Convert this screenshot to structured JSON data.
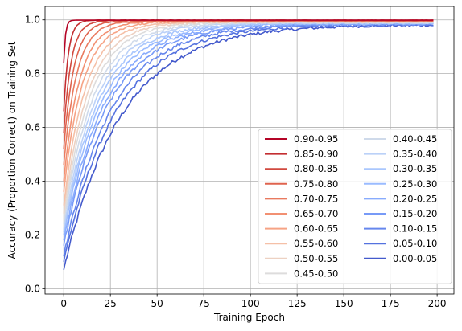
{
  "chart_data": {
    "type": "line",
    "xlabel": "Training Epoch",
    "ylabel": "Accuracy (Proportion Correct) on Training Set",
    "xlim": [
      -10,
      209
    ],
    "ylim": [
      -0.02,
      1.05
    ],
    "xticks": [
      0,
      25,
      50,
      75,
      100,
      125,
      150,
      175,
      200
    ],
    "yticks": [
      0.0,
      0.2,
      0.4,
      0.6,
      0.8,
      1.0
    ],
    "xtick_labels": [
      "0",
      "25",
      "50",
      "75",
      "100",
      "125",
      "150",
      "175",
      "200"
    ],
    "ytick_labels": [
      "0.0",
      "0.2",
      "0.4",
      "0.6",
      "0.8",
      "1.0"
    ],
    "grid": true,
    "legend_position": "lower-right",
    "legend_columns": 2,
    "x_range": [
      0,
      198
    ],
    "series": [
      {
        "name": "0.90-0.95",
        "color": "#b40426",
        "start": 0.84,
        "tau": 0.9,
        "final": 0.999,
        "noise": 0.0
      },
      {
        "name": "0.85-0.90",
        "color": "#c32e31",
        "start": 0.66,
        "tau": 2.5,
        "final": 0.999,
        "noise": 0.001
      },
      {
        "name": "0.80-0.85",
        "color": "#d1493f",
        "start": 0.58,
        "tau": 4.0,
        "final": 0.998,
        "noise": 0.002
      },
      {
        "name": "0.75-0.80",
        "color": "#df634e",
        "start": 0.52,
        "tau": 5.5,
        "final": 0.997,
        "noise": 0.002
      },
      {
        "name": "0.70-0.75",
        "color": "#e97a5f",
        "start": 0.46,
        "tau": 7.0,
        "final": 0.996,
        "noise": 0.003
      },
      {
        "name": "0.65-0.70",
        "color": "#f29072",
        "start": 0.4,
        "tau": 8.5,
        "final": 0.995,
        "noise": 0.003
      },
      {
        "name": "0.60-0.65",
        "color": "#f6a385",
        "start": 0.36,
        "tau": 10.0,
        "final": 0.994,
        "noise": 0.004
      },
      {
        "name": "0.55-0.60",
        "color": "#f5c0a7",
        "start": 0.31,
        "tau": 11.5,
        "final": 0.993,
        "noise": 0.004
      },
      {
        "name": "0.50-0.55",
        "color": "#edd1c2",
        "start": 0.28,
        "tau": 13.0,
        "final": 0.992,
        "noise": 0.005
      },
      {
        "name": "0.45-0.50",
        "color": "#dddcdc",
        "start": 0.26,
        "tau": 14.5,
        "final": 0.991,
        "noise": 0.005
      },
      {
        "name": "0.40-0.45",
        "color": "#cfdaea",
        "start": 0.24,
        "tau": 16.0,
        "final": 0.99,
        "noise": 0.006
      },
      {
        "name": "0.35-0.40",
        "color": "#bbd1f8",
        "start": 0.22,
        "tau": 17.5,
        "final": 0.989,
        "noise": 0.006
      },
      {
        "name": "0.30-0.35",
        "color": "#aac7fd",
        "start": 0.21,
        "tau": 19.0,
        "final": 0.988,
        "noise": 0.007
      },
      {
        "name": "0.25-0.30",
        "color": "#9abbff",
        "start": 0.2,
        "tau": 20.5,
        "final": 0.987,
        "noise": 0.007
      },
      {
        "name": "0.20-0.25",
        "color": "#88abfd",
        "start": 0.18,
        "tau": 22.0,
        "final": 0.986,
        "noise": 0.008
      },
      {
        "name": "0.15-0.20",
        "color": "#779af7",
        "start": 0.16,
        "tau": 23.5,
        "final": 0.985,
        "noise": 0.008
      },
      {
        "name": "0.10-0.15",
        "color": "#6687ed",
        "start": 0.12,
        "tau": 25.5,
        "final": 0.984,
        "noise": 0.009
      },
      {
        "name": "0.05-0.10",
        "color": "#5572df",
        "start": 0.1,
        "tau": 28.0,
        "final": 0.983,
        "noise": 0.009
      },
      {
        "name": "0.00-0.05",
        "color": "#445acc",
        "start": 0.07,
        "tau": 31.0,
        "final": 0.982,
        "noise": 0.01
      }
    ]
  }
}
